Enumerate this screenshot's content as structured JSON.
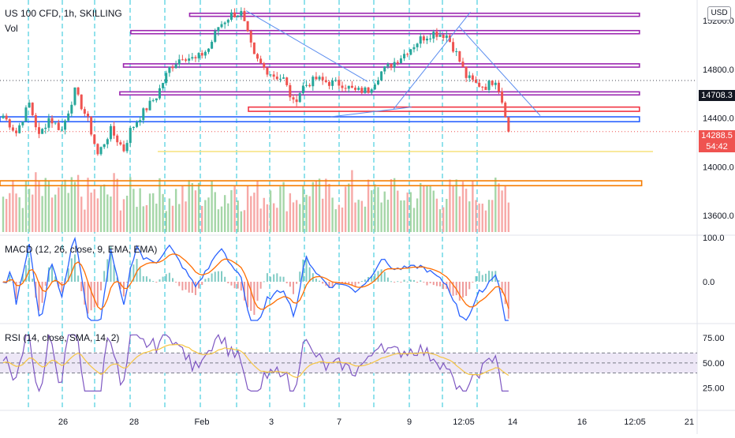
{
  "header": {
    "title": "US 100 CFD, 1h, SKILLING",
    "vol_label": "Vol",
    "currency": "USD"
  },
  "price_tags": {
    "crosshair": "14708.3",
    "last": "14288.5",
    "countdown": "54:42"
  },
  "colors": {
    "up": "#26a69a",
    "down": "#ef5350",
    "vol_up": "#a5d6a7",
    "vol_down": "#f7a9a7",
    "purple": "#9c27b0",
    "blue": "#2962ff",
    "red": "#f23645",
    "orange": "#f57c00",
    "yellow": "#f7e27b",
    "cyan": "#00bcd4",
    "macd_line": "#2962ff",
    "signal_line": "#ff6d00",
    "rsi_line": "#7e57c2",
    "rsi_ma": "#f5c542",
    "rsi_band": "#ede7f6"
  },
  "macd": {
    "label": "MACD (12, 26, close, 9, EMA, EMA)",
    "axis_labels": [
      "100.0",
      "0.0"
    ],
    "axis_values": [
      100,
      0
    ]
  },
  "rsi": {
    "label": "RSI (14, close, SMA, 14, 2)",
    "axis_labels": [
      "75.00",
      "50.00",
      "25.00"
    ],
    "axis_values": [
      75,
      50,
      25
    ],
    "upper_band": 60,
    "lower_band": 40
  },
  "chart_data": {
    "type": "candlestick",
    "title": "US 100 CFD, 1h, SKILLING",
    "price_axis_ticks": [
      "15200.0",
      "14800.0",
      "14400.0",
      "14000.0",
      "13600.0"
    ],
    "price_axis_values": [
      15200,
      14800,
      14400,
      14000,
      13600
    ],
    "ylim": [
      13620,
      15330
    ],
    "x_ticks": [
      "26",
      "28",
      "Feb",
      "3",
      "7",
      "9",
      "12:05",
      "14",
      "16",
      "12:05",
      "21"
    ],
    "last_price": 14288.5,
    "crosshair_price": 14708.3,
    "price_path": [
      [
        0,
        14420
      ],
      [
        4,
        14280
      ],
      [
        8,
        14520
      ],
      [
        11,
        14250
      ],
      [
        14,
        14400
      ],
      [
        18,
        14300
      ],
      [
        22,
        14620
      ],
      [
        26,
        14380
      ],
      [
        29,
        14100
      ],
      [
        33,
        14300
      ],
      [
        37,
        14140
      ],
      [
        39,
        14300
      ],
      [
        43,
        14450
      ],
      [
        47,
        14580
      ],
      [
        51,
        14810
      ],
      [
        55,
        14910
      ],
      [
        59,
        14880
      ],
      [
        63,
        14970
      ],
      [
        66,
        15150
      ],
      [
        70,
        15250
      ],
      [
        73,
        15260
      ],
      [
        75,
        15080
      ],
      [
        77,
        14900
      ],
      [
        80,
        14810
      ],
      [
        83,
        14750
      ],
      [
        86,
        14720
      ],
      [
        89,
        14520
      ],
      [
        92,
        14660
      ],
      [
        96,
        14720
      ],
      [
        100,
        14690
      ],
      [
        104,
        14680
      ],
      [
        108,
        14620
      ],
      [
        112,
        14630
      ],
      [
        116,
        14780
      ],
      [
        120,
        14860
      ],
      [
        124,
        14950
      ],
      [
        128,
        15050
      ],
      [
        132,
        15100
      ],
      [
        136,
        15080
      ],
      [
        139,
        14930
      ],
      [
        142,
        14740
      ],
      [
        145,
        14680
      ],
      [
        148,
        14660
      ],
      [
        151,
        14720
      ],
      [
        152,
        14640
      ],
      [
        154,
        14440
      ],
      [
        155,
        14290
      ]
    ],
    "zones": [
      {
        "color": "purple",
        "from": 15260,
        "to": 15235,
        "x0": 0.258,
        "x1": 0.87
      },
      {
        "color": "purple",
        "from": 15118,
        "to": 15092,
        "x0": 0.178,
        "x1": 0.87
      },
      {
        "color": "purple",
        "from": 14845,
        "to": 14818,
        "x0": 0.168,
        "x1": 0.87
      },
      {
        "color": "purple",
        "from": 14615,
        "to": 14590,
        "x0": 0.163,
        "x1": 0.87
      },
      {
        "color": "red",
        "from": 14490,
        "to": 14455,
        "x0": 0.338,
        "x1": 0.87
      },
      {
        "color": "blue",
        "from": 14410,
        "to": 14370,
        "x0": 0.0,
        "x1": 0.87
      },
      {
        "color": "orange",
        "from": 13885,
        "to": 13845,
        "x0": 0.0,
        "x1": 0.873
      }
    ],
    "yellow_line": 14125,
    "trend_lines": [
      {
        "from": [
          0.335,
          15280
        ],
        "to": [
          0.5,
          14700
        ]
      },
      {
        "from": [
          0.625,
          15150
        ],
        "to": [
          0.735,
          14420
        ]
      },
      {
        "from": [
          0.45,
          14410
        ],
        "to": [
          0.56,
          14490
        ]
      },
      {
        "from": [
          0.535,
          14470
        ],
        "to": [
          0.64,
          15270
        ]
      }
    ]
  }
}
